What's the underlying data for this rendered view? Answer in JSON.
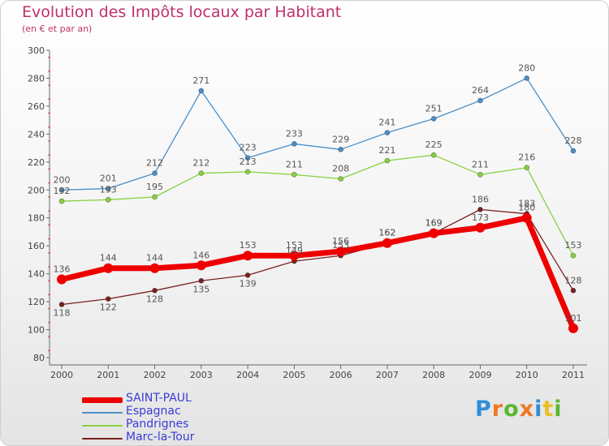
{
  "title": "Evolution des Impôts locaux par Habitant",
  "subtitle": "(en € et par an)",
  "watermark": "Proxiti",
  "watermark_colors": [
    "#2f8fd8",
    "#f07820",
    "#58b830",
    "#f07820",
    "#2f8fd8",
    "#e8c020",
    "#58b830"
  ],
  "chart_data": {
    "type": "line",
    "title": "Evolution des Impôts locaux par Habitant",
    "subtitle": "(en € et par an)",
    "x": [
      "2000",
      "2001",
      "2002",
      "2003",
      "2004",
      "2005",
      "2006",
      "2007",
      "2008",
      "2009",
      "2010",
      "2011"
    ],
    "ylim": [
      80,
      300
    ],
    "yticks": [
      80,
      100,
      120,
      140,
      160,
      180,
      200,
      220,
      240,
      260,
      280,
      300
    ],
    "grid": false,
    "legend_position": "bottom-left",
    "series": [
      {
        "name": "SAINT-PAUL",
        "color": "#ee0000",
        "values": [
          136,
          144,
          144,
          146,
          153,
          153,
          156,
          162,
          169,
          173,
          180,
          101
        ]
      },
      {
        "name": "Espagnac",
        "color": "#4a8fc8",
        "values": [
          200,
          201,
          212,
          271,
          223,
          233,
          229,
          241,
          251,
          264,
          280,
          228
        ]
      },
      {
        "name": "Pandrignes",
        "color": "#88d040",
        "values": [
          192,
          193,
          195,
          212,
          213,
          211,
          208,
          221,
          225,
          211,
          216,
          153
        ]
      },
      {
        "name": "Marc-la-Tour",
        "color": "#7a2020",
        "values": [
          118,
          122,
          128,
          135,
          139,
          149,
          153,
          162,
          169,
          186,
          183,
          128
        ]
      }
    ]
  }
}
